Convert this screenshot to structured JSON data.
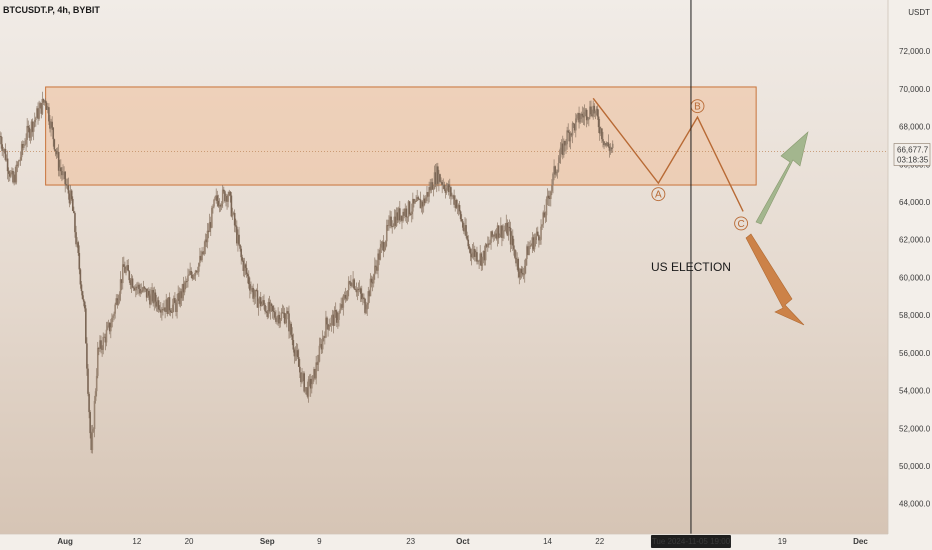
{
  "header": {
    "symbol": "BTCUSDT.P, 4h, BYBIT",
    "currency": "USDT"
  },
  "price_badge": {
    "price": "66,677.7",
    "countdown": "03:18:35"
  },
  "cursor_date": "Tue 2024-11-05  19:00",
  "event_label": "US ELECTION",
  "colors": {
    "candle_body": "#8b7664",
    "zone_fill": "#efc09b",
    "zone_stroke": "#c8733a",
    "projection": "#b86a35",
    "arrow_up": "#a3b68e",
    "arrow_down": "#cc8248",
    "current_price_line": "#c08a60"
  },
  "chart_data": {
    "type": "candlestick",
    "y_axis": {
      "min": 46500,
      "max": 74500,
      "ticks": [
        "72,000.0",
        "70,000.0",
        "68,000.0",
        "66,000.0",
        "64,000.0",
        "62,000.0",
        "60,000.0",
        "58,000.0",
        "56,000.0",
        "54,000.0",
        "52,000.0",
        "50,000.0",
        "48,000.0"
      ]
    },
    "x_axis": {
      "start": "2024-07-22",
      "end": "2024-12-04",
      "ticks": [
        {
          "label": "Aug",
          "date": "2024-08-01"
        },
        {
          "label": "12",
          "date": "2024-08-12"
        },
        {
          "label": "20",
          "date": "2024-08-20"
        },
        {
          "label": "Sep",
          "date": "2024-09-01"
        },
        {
          "label": "9",
          "date": "2024-09-09"
        },
        {
          "label": "23",
          "date": "2024-09-23"
        },
        {
          "label": "Oct",
          "date": "2024-10-01"
        },
        {
          "label": "14",
          "date": "2024-10-14"
        },
        {
          "label": "22",
          "date": "2024-10-22"
        },
        {
          "label": "19",
          "date": "2024-11-19"
        },
        {
          "label": "Dec",
          "date": "2024-12-01"
        }
      ]
    },
    "price_path": [
      [
        "2024-07-22",
        67500
      ],
      [
        "2024-07-24",
        65000
      ],
      [
        "2024-07-26",
        67500
      ],
      [
        "2024-07-29",
        69500
      ],
      [
        "2024-07-31",
        66000
      ],
      [
        "2024-08-02",
        64000
      ],
      [
        "2024-08-04",
        58000
      ],
      [
        "2024-08-05",
        50500
      ],
      [
        "2024-08-06",
        56000
      ],
      [
        "2024-08-08",
        57500
      ],
      [
        "2024-08-10",
        60500
      ],
      [
        "2024-08-12",
        59500
      ],
      [
        "2024-08-14",
        59000
      ],
      [
        "2024-08-16",
        58500
      ],
      [
        "2024-08-18",
        58500
      ],
      [
        "2024-08-20",
        60000
      ],
      [
        "2024-08-22",
        61000
      ],
      [
        "2024-08-24",
        64000
      ],
      [
        "2024-08-26",
        64500
      ],
      [
        "2024-08-28",
        61000
      ],
      [
        "2024-08-30",
        59000
      ],
      [
        "2024-09-02",
        58000
      ],
      [
        "2024-09-04",
        58000
      ],
      [
        "2024-09-06",
        55000
      ],
      [
        "2024-09-07",
        54000
      ],
      [
        "2024-09-08",
        54500
      ],
      [
        "2024-09-10",
        57500
      ],
      [
        "2024-09-12",
        58000
      ],
      [
        "2024-09-14",
        60000
      ],
      [
        "2024-09-16",
        58500
      ],
      [
        "2024-09-18",
        61000
      ],
      [
        "2024-09-20",
        63000
      ],
      [
        "2024-09-22",
        63500
      ],
      [
        "2024-09-25",
        64000
      ],
      [
        "2024-09-27",
        65500
      ],
      [
        "2024-09-30",
        64000
      ],
      [
        "2024-10-02",
        61500
      ],
      [
        "2024-10-04",
        61000
      ],
      [
        "2024-10-06",
        62500
      ],
      [
        "2024-10-08",
        62500
      ],
      [
        "2024-10-10",
        60000
      ],
      [
        "2024-10-11",
        61500
      ],
      [
        "2024-10-13",
        62500
      ],
      [
        "2024-10-15",
        65500
      ],
      [
        "2024-10-17",
        67500
      ],
      [
        "2024-10-19",
        68500
      ],
      [
        "2024-10-21",
        69000
      ],
      [
        "2024-10-23",
        67000
      ],
      [
        "2024-10-24",
        66800
      ]
    ],
    "supply_zone": {
      "x_start": "2024-07-29",
      "x_end": "2024-11-15",
      "y_low": 64900,
      "y_high": 70100
    },
    "current_price": 66677.7,
    "projection": [
      {
        "date": "2024-10-21",
        "price": 69500,
        "label": ""
      },
      {
        "date": "2024-10-31",
        "price": 65000,
        "label": "A"
      },
      {
        "date": "2024-11-06",
        "price": 68500,
        "label": "B"
      },
      {
        "date": "2024-11-13",
        "price": 63500,
        "label": "C"
      }
    ],
    "event_marker": {
      "date": "2024-11-05",
      "label": "US ELECTION"
    },
    "scenario_arrows": [
      "up",
      "down"
    ]
  }
}
